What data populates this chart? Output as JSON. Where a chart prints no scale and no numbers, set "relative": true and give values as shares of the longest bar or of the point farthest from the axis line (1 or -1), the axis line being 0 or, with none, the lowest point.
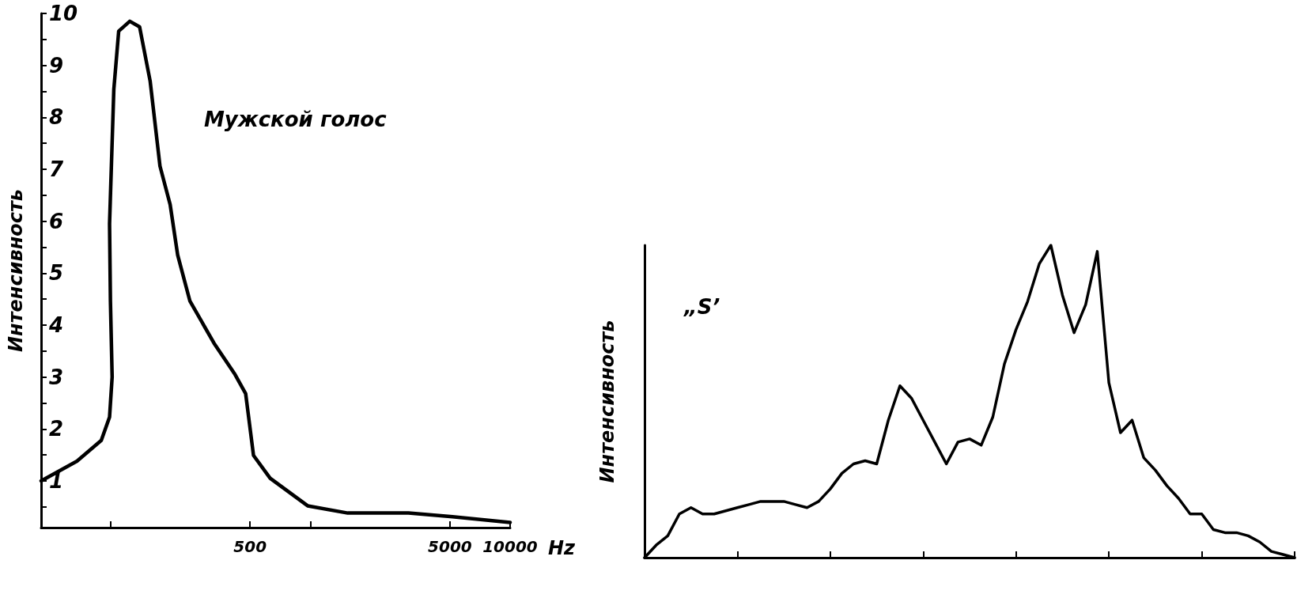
{
  "chart_data": [
    {
      "type": "line",
      "ylabel": "Интенсивность",
      "annotations": [
        "Мужской голос"
      ],
      "log": "x",
      "xlim": [
        45,
        10000
      ],
      "xticks": [
        {
          "value": 100,
          "label": null
        },
        500,
        {
          "value": 1000,
          "label": null
        },
        5000,
        10000
      ],
      "xlabel": "Hz",
      "ylim": [
        0.1,
        10
      ],
      "yticks": [
        {
          "value": 0.5,
          "label": null
        },
        1,
        {
          "value": 1.5,
          "label": null
        },
        2,
        {
          "value": 2.5,
          "label": null
        },
        3,
        {
          "value": 3.5,
          "label": null
        },
        4,
        {
          "value": 4.5,
          "label": null
        },
        5,
        {
          "value": 5.5,
          "label": null
        },
        6,
        {
          "value": 6.5,
          "label": null
        },
        7,
        {
          "value": 7.5,
          "label": null
        },
        8,
        {
          "value": 8.5,
          "label": null
        },
        9,
        {
          "value": 9.5,
          "label": null
        },
        10
      ],
      "grid": false,
      "marker": "none",
      "line_style": "solid",
      "series": [
        {
          "color": "#000000",
          "x": [
            45,
            68,
            90,
            99,
            102,
            100,
            99,
            104,
            110,
            125,
            140,
            158,
            177,
            199,
            217,
            250,
            330,
            420,
            475,
            520,
            630,
            970,
            1540,
            3100,
            5150,
            10000
          ],
          "values": [
            1.0,
            1.38,
            1.78,
            2.23,
            3.0,
            4.46,
            5.95,
            8.54,
            9.66,
            9.85,
            9.74,
            8.7,
            7.06,
            6.32,
            5.35,
            4.46,
            3.65,
            3.05,
            2.68,
            1.49,
            1.05,
            0.52,
            0.38,
            0.38,
            0.31,
            0.2
          ]
        }
      ]
    },
    {
      "type": "line",
      "ylabel": "Интенсивность",
      "annotations": [
        "„S’"
      ],
      "relative": true,
      "grid": false,
      "marker": "none",
      "line_style": "solid",
      "categories": [
        null,
        null,
        null,
        null,
        null,
        null,
        null,
        null,
        null,
        null,
        null,
        null,
        null,
        null,
        null,
        null,
        null,
        null,
        null,
        null,
        null,
        null,
        null,
        null,
        null,
        null,
        null,
        null,
        null,
        null,
        null,
        null,
        null,
        null,
        null,
        null,
        null,
        null,
        null,
        null,
        null,
        null,
        null,
        null,
        null,
        null,
        null,
        null,
        null,
        null,
        null,
        null,
        null,
        null,
        null,
        null,
        null
      ],
      "series": [
        {
          "color": "#000000",
          "values": [
            0,
            0.04,
            0.07,
            0.14,
            0.16,
            0.14,
            0.14,
            0.15,
            0.16,
            0.17,
            0.18,
            0.18,
            0.18,
            0.17,
            0.16,
            0.18,
            0.22,
            0.27,
            0.3,
            0.31,
            0.3,
            0.44,
            0.55,
            0.51,
            0.44,
            0.37,
            0.3,
            0.37,
            0.38,
            0.36,
            0.45,
            0.62,
            0.73,
            0.82,
            0.94,
            1.0,
            0.84,
            0.72,
            0.81,
            0.98,
            0.56,
            0.4,
            0.44,
            0.32,
            0.28,
            0.23,
            0.19,
            0.14,
            0.14,
            0.09,
            0.08,
            0.08,
            0.07,
            0.05,
            0.02,
            0.01,
            0
          ]
        }
      ]
    }
  ]
}
